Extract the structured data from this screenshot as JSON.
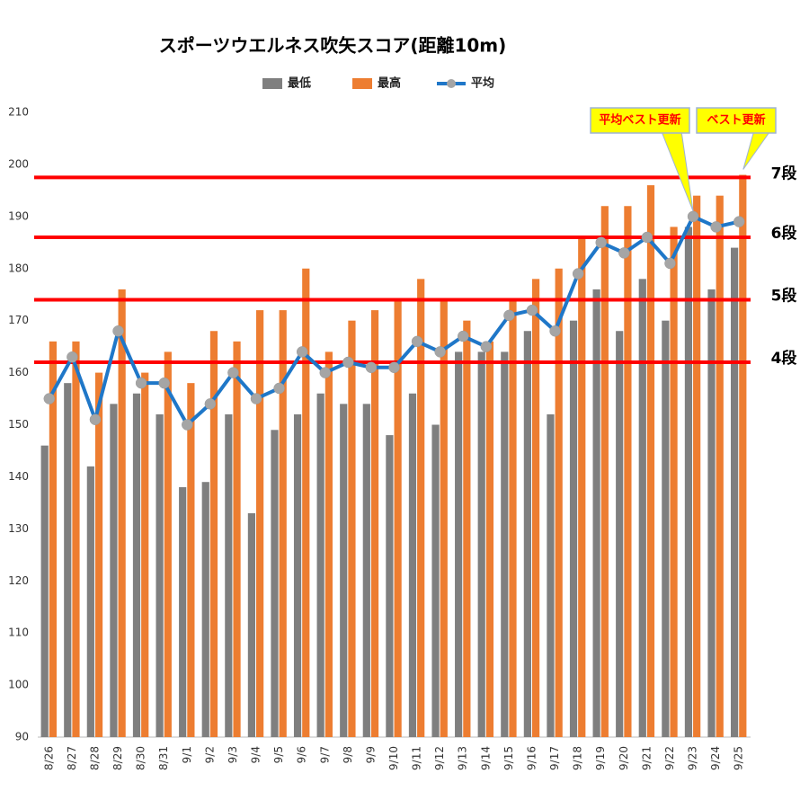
{
  "chart_data": {
    "type": "combo",
    "title": "スポーツウエルネス吹矢スコア(距離10m)",
    "categories": [
      "8/26",
      "8/27",
      "8/28",
      "8/29",
      "8/30",
      "8/31",
      "9/1",
      "9/2",
      "9/3",
      "9/4",
      "9/5",
      "9/6",
      "9/7",
      "9/8",
      "9/9",
      "9/10",
      "9/11",
      "9/12",
      "9/13",
      "9/14",
      "9/15",
      "9/16",
      "9/17",
      "9/18",
      "9/19",
      "9/20",
      "9/21",
      "9/22",
      "9/23",
      "9/24",
      "9/25"
    ],
    "series": [
      {
        "name": "最低",
        "type": "bar",
        "color": "#7f7f7f",
        "values": [
          146,
          158,
          142,
          154,
          156,
          152,
          138,
          139,
          152,
          133,
          149,
          152,
          156,
          154,
          154,
          148,
          156,
          150,
          164,
          164,
          164,
          168,
          152,
          170,
          176,
          168,
          178,
          170,
          188,
          176,
          184
        ]
      },
      {
        "name": "最高",
        "type": "bar",
        "color": "#ed7d31",
        "values": [
          166,
          166,
          160,
          176,
          160,
          164,
          158,
          168,
          166,
          172,
          172,
          180,
          164,
          170,
          172,
          174,
          178,
          174,
          170,
          166,
          174,
          178,
          180,
          186,
          192,
          192,
          196,
          188,
          194,
          194,
          198
        ]
      },
      {
        "name": "平均",
        "type": "line",
        "color": "#1f77c8",
        "marker_color": "#a5a5a5",
        "values": [
          155,
          163,
          151,
          168,
          158,
          158,
          150,
          154,
          160,
          155,
          157,
          164,
          160,
          162,
          161,
          161,
          166,
          164,
          167,
          165,
          171,
          172,
          168,
          179,
          185,
          183,
          186,
          181,
          190,
          188,
          189
        ]
      }
    ],
    "ylim": [
      90,
      210
    ],
    "yticks": [
      90,
      100,
      110,
      120,
      130,
      140,
      150,
      160,
      170,
      180,
      190,
      200,
      210
    ],
    "grid": false,
    "reference_lines": [
      {
        "label": "7段",
        "value": 197.5,
        "color": "#ff0000"
      },
      {
        "label": "6段",
        "value": 186,
        "color": "#ff0000"
      },
      {
        "label": "5段",
        "value": 174,
        "color": "#ff0000"
      },
      {
        "label": "4段",
        "value": 162,
        "color": "#ff0000"
      }
    ],
    "annotations": [
      {
        "text": "平均ベスト更新",
        "category": "9/23",
        "series": "平均"
      },
      {
        "text": "ベスト更新",
        "category": "9/25",
        "series": "最高"
      }
    ]
  }
}
